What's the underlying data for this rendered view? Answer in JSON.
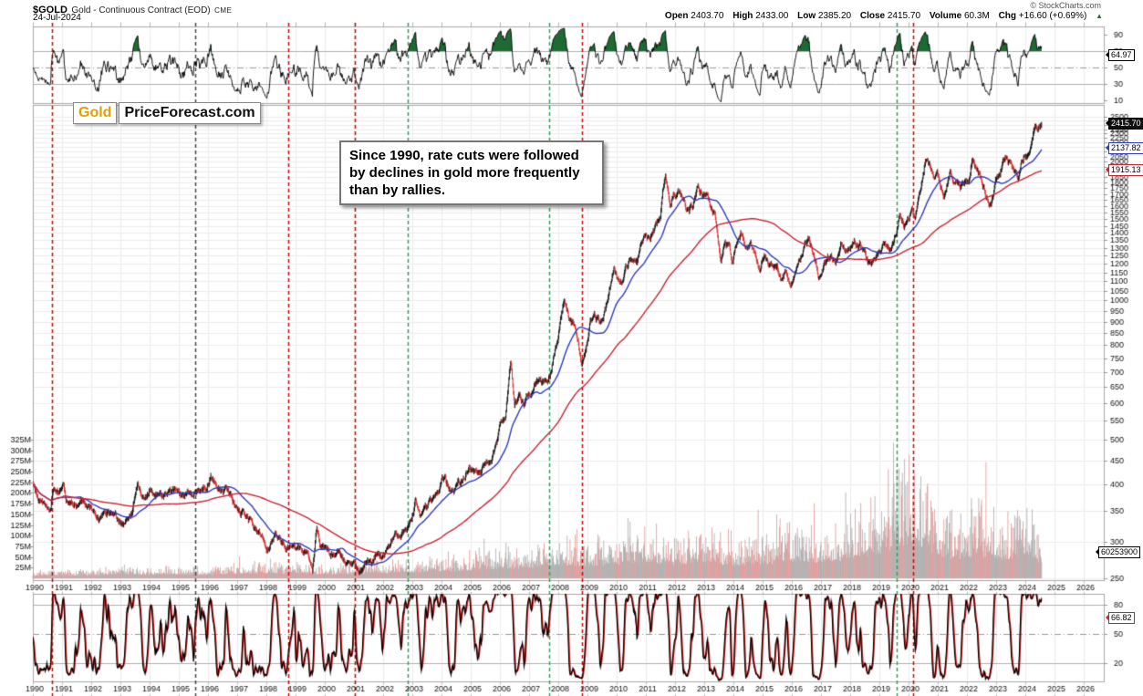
{
  "header": {
    "symbol": "$GOLD",
    "description": "Gold - Continuous Contract (EOD)",
    "exchange": "CME",
    "date": "24-Jul-2024",
    "watermark": "© StockCharts.com",
    "quote": {
      "open_label": "Open",
      "open": "2403.70",
      "high_label": "High",
      "high": "2433.00",
      "low_label": "Low",
      "low": "2385.20",
      "close_label": "Close",
      "close": "2415.70",
      "volume_label": "Volume",
      "volume": "60.3M",
      "chg_label": "Chg",
      "chg": "+16.60 (+0.69%)",
      "chg_arrow": "▲"
    }
  },
  "logo": {
    "gold": "Gold",
    "rest": "PriceForecast.com"
  },
  "annotation": {
    "text": "Since 1990, rate cuts were followed by declines in gold more frequently than by rallies."
  },
  "value_boxes": {
    "rsi": "64.97",
    "close": "2415.70",
    "ma_fast": "2137.82",
    "ma_slow": "1915.13",
    "volume": "60253900",
    "stoch": "66.82"
  },
  "chart_data": {
    "type": "candlestick",
    "title": "$GOLD Gold - Continuous Contract (EOD) CME, weekly, 1990-2024, with momentum panel above, volume overlay and stochastic panel below",
    "price_scale": "log",
    "price_ylim": [
      250,
      2500
    ],
    "x_range": [
      1990,
      2026.5
    ],
    "series_end_year": 2024.56,
    "noise_seed": 42,
    "years": [
      1990,
      1991,
      1992,
      1993,
      1994,
      1995,
      1996,
      1997,
      1998,
      1999,
      2000,
      2001,
      2002,
      2003,
      2004,
      2005,
      2006,
      2007,
      2008,
      2009,
      2010,
      2011,
      2012,
      2013,
      2014,
      2015,
      2016,
      2017,
      2018,
      2019,
      2020,
      2021,
      2022,
      2023,
      2024,
      2025,
      2026
    ],
    "price_ticks": [
      250,
      300,
      350,
      400,
      450,
      500,
      550,
      600,
      650,
      700,
      750,
      800,
      850,
      900,
      950,
      1000,
      1050,
      1100,
      1150,
      1200,
      1250,
      1300,
      1350,
      1400,
      1450,
      1500,
      1550,
      1600,
      1650,
      1700,
      1750,
      1800,
      1850,
      1900,
      1950,
      2000,
      2050,
      2100,
      2150,
      2200,
      2250,
      2300,
      2350,
      2400,
      2450,
      2500
    ],
    "volume_ticks_m": [
      25,
      50,
      75,
      100,
      125,
      150,
      175,
      200,
      225,
      250,
      275,
      300,
      325
    ],
    "rsi_ticks": [
      10,
      30,
      50,
      70,
      90
    ],
    "stoch_ticks": [
      20,
      50,
      80
    ],
    "last_values": {
      "rsi": 64.97,
      "close": 2415.7,
      "ma_fast": 2137.82,
      "ma_slow": 1915.13,
      "volume_m": 60.25,
      "stoch": 66.82
    },
    "event_lines": [
      {
        "year": 1990.66,
        "color": "red"
      },
      {
        "year": 1995.55,
        "color": "black"
      },
      {
        "year": 1998.75,
        "color": "red"
      },
      {
        "year": 2001.03,
        "color": "red"
      },
      {
        "year": 2002.85,
        "color": "green"
      },
      {
        "year": 2007.7,
        "color": "green"
      },
      {
        "year": 2008.8,
        "color": "red"
      },
      {
        "year": 2019.6,
        "color": "green"
      },
      {
        "year": 2020.17,
        "color": "red"
      }
    ],
    "price_anchors": [
      [
        1990.0,
        400
      ],
      [
        1990.25,
        372
      ],
      [
        1990.45,
        355
      ],
      [
        1990.6,
        352
      ],
      [
        1990.7,
        394
      ],
      [
        1990.85,
        380
      ],
      [
        1991.05,
        388
      ],
      [
        1991.15,
        366
      ],
      [
        1991.45,
        360
      ],
      [
        1991.7,
        367
      ],
      [
        1991.95,
        358
      ],
      [
        1992.3,
        340
      ],
      [
        1992.6,
        345
      ],
      [
        1992.9,
        333
      ],
      [
        1993.2,
        328
      ],
      [
        1993.4,
        345
      ],
      [
        1993.6,
        402
      ],
      [
        1993.8,
        368
      ],
      [
        1994.05,
        388
      ],
      [
        1994.3,
        380
      ],
      [
        1994.6,
        387
      ],
      [
        1994.9,
        383
      ],
      [
        1995.15,
        376
      ],
      [
        1995.5,
        388
      ],
      [
        1995.8,
        384
      ],
      [
        1996.1,
        414
      ],
      [
        1996.4,
        392
      ],
      [
        1996.7,
        383
      ],
      [
        1997.0,
        352
      ],
      [
        1997.3,
        345
      ],
      [
        1997.55,
        322
      ],
      [
        1997.8,
        310
      ],
      [
        1998.0,
        289
      ],
      [
        1998.35,
        308
      ],
      [
        1998.65,
        293
      ],
      [
        1998.9,
        294
      ],
      [
        1999.15,
        287
      ],
      [
        1999.4,
        280
      ],
      [
        1999.58,
        255
      ],
      [
        1999.73,
        324
      ],
      [
        1999.85,
        298
      ],
      [
        2000.1,
        284
      ],
      [
        2000.3,
        278
      ],
      [
        2000.45,
        286
      ],
      [
        2000.7,
        273
      ],
      [
        2000.95,
        268
      ],
      [
        2001.15,
        262
      ],
      [
        2001.3,
        257
      ],
      [
        2001.45,
        272
      ],
      [
        2001.6,
        267
      ],
      [
        2001.75,
        279
      ],
      [
        2001.95,
        276
      ],
      [
        2002.15,
        296
      ],
      [
        2002.4,
        312
      ],
      [
        2002.6,
        305
      ],
      [
        2002.8,
        318
      ],
      [
        2002.95,
        332
      ],
      [
        2003.1,
        368
      ],
      [
        2003.25,
        334
      ],
      [
        2003.45,
        352
      ],
      [
        2003.65,
        362
      ],
      [
        2003.95,
        400
      ],
      [
        2004.1,
        415
      ],
      [
        2004.3,
        388
      ],
      [
        2004.55,
        395
      ],
      [
        2004.75,
        418
      ],
      [
        2004.95,
        442
      ],
      [
        2005.1,
        424
      ],
      [
        2005.4,
        428
      ],
      [
        2005.65,
        437
      ],
      [
        2005.85,
        476
      ],
      [
        2006.0,
        530
      ],
      [
        2006.2,
        555
      ],
      [
        2006.37,
        720
      ],
      [
        2006.5,
        585
      ],
      [
        2006.65,
        620
      ],
      [
        2006.8,
        590
      ],
      [
        2007.0,
        635
      ],
      [
        2007.2,
        655
      ],
      [
        2007.4,
        662
      ],
      [
        2007.6,
        655
      ],
      [
        2007.75,
        690
      ],
      [
        2007.9,
        800
      ],
      [
        2008.05,
        890
      ],
      [
        2008.2,
        1002
      ],
      [
        2008.35,
        920
      ],
      [
        2008.55,
        880
      ],
      [
        2008.7,
        800
      ],
      [
        2008.8,
        725
      ],
      [
        2008.95,
        800
      ],
      [
        2009.1,
        900
      ],
      [
        2009.25,
        925
      ],
      [
        2009.4,
        890
      ],
      [
        2009.55,
        935
      ],
      [
        2009.7,
        995
      ],
      [
        2009.9,
        1190
      ],
      [
        2010.05,
        1120
      ],
      [
        2010.2,
        1105
      ],
      [
        2010.4,
        1200
      ],
      [
        2010.55,
        1235
      ],
      [
        2010.7,
        1200
      ],
      [
        2010.85,
        1330
      ],
      [
        2011.0,
        1405
      ],
      [
        2011.15,
        1360
      ],
      [
        2011.3,
        1440
      ],
      [
        2011.5,
        1530
      ],
      [
        2011.67,
        1890
      ],
      [
        2011.75,
        1780
      ],
      [
        2011.83,
        1620
      ],
      [
        2011.95,
        1720
      ],
      [
        2012.1,
        1735
      ],
      [
        2012.3,
        1640
      ],
      [
        2012.45,
        1570
      ],
      [
        2012.6,
        1600
      ],
      [
        2012.78,
        1775
      ],
      [
        2012.95,
        1690
      ],
      [
        2013.1,
        1670
      ],
      [
        2013.25,
        1590
      ],
      [
        2013.35,
        1560
      ],
      [
        2013.47,
        1370
      ],
      [
        2013.58,
        1230
      ],
      [
        2013.7,
        1340
      ],
      [
        2013.85,
        1310
      ],
      [
        2013.98,
        1200
      ],
      [
        2014.15,
        1330
      ],
      [
        2014.25,
        1382
      ],
      [
        2014.45,
        1290
      ],
      [
        2014.6,
        1310
      ],
      [
        2014.75,
        1230
      ],
      [
        2014.9,
        1150
      ],
      [
        2015.05,
        1285
      ],
      [
        2015.2,
        1200
      ],
      [
        2015.35,
        1180
      ],
      [
        2015.5,
        1160
      ],
      [
        2015.65,
        1090
      ],
      [
        2015.8,
        1135
      ],
      [
        2015.95,
        1052
      ],
      [
        2016.1,
        1150
      ],
      [
        2016.3,
        1250
      ],
      [
        2016.5,
        1320
      ],
      [
        2016.6,
        1360
      ],
      [
        2016.75,
        1260
      ],
      [
        2016.9,
        1135
      ],
      [
        2017.05,
        1185
      ],
      [
        2017.25,
        1245
      ],
      [
        2017.4,
        1225
      ],
      [
        2017.55,
        1255
      ],
      [
        2017.7,
        1340
      ],
      [
        2017.85,
        1280
      ],
      [
        2018.0,
        1310
      ],
      [
        2018.15,
        1350
      ],
      [
        2018.3,
        1325
      ],
      [
        2018.5,
        1280
      ],
      [
        2018.65,
        1185
      ],
      [
        2018.8,
        1200
      ],
      [
        2018.95,
        1255
      ],
      [
        2019.1,
        1290
      ],
      [
        2019.25,
        1300
      ],
      [
        2019.42,
        1275
      ],
      [
        2019.55,
        1400
      ],
      [
        2019.7,
        1530
      ],
      [
        2019.85,
        1470
      ],
      [
        2020.0,
        1520
      ],
      [
        2020.12,
        1580
      ],
      [
        2020.22,
        1475
      ],
      [
        2020.4,
        1720
      ],
      [
        2020.58,
        2055
      ],
      [
        2020.72,
        1935
      ],
      [
        2020.85,
        1870
      ],
      [
        2020.95,
        1885
      ],
      [
        2021.05,
        1835
      ],
      [
        2021.2,
        1720
      ],
      [
        2021.3,
        1745
      ],
      [
        2021.42,
        1895
      ],
      [
        2021.55,
        1765
      ],
      [
        2021.7,
        1815
      ],
      [
        2021.85,
        1760
      ],
      [
        2021.98,
        1805
      ],
      [
        2022.1,
        1860
      ],
      [
        2022.18,
        2045
      ],
      [
        2022.3,
        1940
      ],
      [
        2022.45,
        1845
      ],
      [
        2022.6,
        1740
      ],
      [
        2022.73,
        1640
      ],
      [
        2022.85,
        1665
      ],
      [
        2022.98,
        1815
      ],
      [
        2023.1,
        1870
      ],
      [
        2023.25,
        2000
      ],
      [
        2023.35,
        2030
      ],
      [
        2023.5,
        1960
      ],
      [
        2023.62,
        1920
      ],
      [
        2023.75,
        1830
      ],
      [
        2023.85,
        1985
      ],
      [
        2023.95,
        2075
      ],
      [
        2024.05,
        2035
      ],
      [
        2024.15,
        2060
      ],
      [
        2024.25,
        2170
      ],
      [
        2024.33,
        2385
      ],
      [
        2024.42,
        2330
      ],
      [
        2024.5,
        2360
      ],
      [
        2024.56,
        2416
      ]
    ],
    "volume_anchors_m": [
      [
        1990,
        13
      ],
      [
        1992,
        17
      ],
      [
        1993,
        22
      ],
      [
        1994,
        20
      ],
      [
        1995,
        23
      ],
      [
        1996,
        20
      ],
      [
        1997,
        26
      ],
      [
        1998,
        30
      ],
      [
        1999,
        27
      ],
      [
        2000,
        24
      ],
      [
        2001,
        25
      ],
      [
        2002,
        30
      ],
      [
        2003,
        36
      ],
      [
        2004,
        42
      ],
      [
        2005,
        44
      ],
      [
        2006,
        58
      ],
      [
        2007,
        60
      ],
      [
        2008,
        78
      ],
      [
        2009,
        72
      ],
      [
        2010,
        80
      ],
      [
        2011,
        92
      ],
      [
        2012,
        80
      ],
      [
        2013,
        95
      ],
      [
        2014,
        75
      ],
      [
        2015,
        80
      ],
      [
        2016,
        105
      ],
      [
        2017,
        90
      ],
      [
        2018,
        115
      ],
      [
        2019,
        150
      ],
      [
        2019.7,
        185
      ],
      [
        2020.1,
        205
      ],
      [
        2020.5,
        185
      ],
      [
        2021,
        135
      ],
      [
        2021.5,
        115
      ],
      [
        2022,
        120
      ],
      [
        2022.3,
        145
      ],
      [
        2023,
        105
      ],
      [
        2023.5,
        115
      ],
      [
        2024,
        125
      ],
      [
        2024.4,
        110
      ],
      [
        2024.56,
        60
      ]
    ],
    "colors": {
      "up_candle": "#000000",
      "down_candle": "#cc2020",
      "ma_fast": "#2f3bbd",
      "ma_slow": "#cc2333",
      "volume_up": "#a9a9a9",
      "volume_down": "#dd9494",
      "grid": "#ececec",
      "panel_border": "#a8a8a8",
      "indicator_level": "#b0b0b0",
      "red": "#cc0000",
      "green": "#2fa05a",
      "black": "#444444",
      "rsi_line": "#000000",
      "rsi_overbought_fill": "#1d6b33",
      "stoch_k": "#000000",
      "stoch_d": "#cc2020",
      "axis_text": "#111111",
      "logo_accent": "#e89d00"
    }
  }
}
